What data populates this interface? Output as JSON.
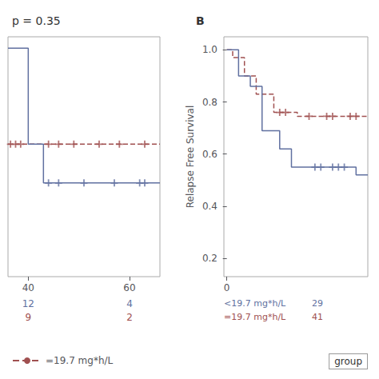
{
  "chart_data": [
    {
      "type": "line",
      "title": "p = 0.35",
      "xlim": [
        36,
        66
      ],
      "ylim": [
        0.0,
        1.05
      ],
      "xticks": [
        40,
        60
      ],
      "yticks": [],
      "tick_labels": "x",
      "grid": false,
      "legend": "lower left",
      "series": [
        {
          "name": "=19.7 mg*h/L",
          "type": "line",
          "line_style": "dashed",
          "color": "#a05050",
          "x": [
            36,
            66
          ],
          "values": [
            0.58,
            0.58
          ]
        },
        {
          "type": "scatter",
          "marker": "+",
          "color": "#a05050",
          "x": [
            36.5,
            37.5,
            38.5,
            44,
            46,
            49,
            54,
            58,
            63
          ],
          "values": [
            0.58,
            0.58,
            0.58,
            0.58,
            0.58,
            0.58,
            0.58,
            0.58,
            0.58
          ]
        },
        {
          "type": "line",
          "line_style": "solid",
          "color": "#6070a0",
          "x": [
            36,
            40,
            40,
            43,
            43,
            66
          ],
          "values": [
            1.0,
            1.0,
            0.58,
            0.58,
            0.41,
            0.41
          ]
        },
        {
          "type": "scatter",
          "marker": "+",
          "color": "#6070a0",
          "x": [
            44,
            46,
            51,
            57,
            62,
            63
          ],
          "values": [
            0.41,
            0.41,
            0.41,
            0.41,
            0.41,
            0.41
          ]
        }
      ],
      "at_risk": {
        "x": [
          40,
          60
        ],
        "rows": [
          {
            "color": "#6070a0",
            "values": [
              12,
              4
            ]
          },
          {
            "color": "#a05050",
            "values": [
              9,
              2
            ]
          }
        ]
      }
    },
    {
      "type": "line",
      "title": "B",
      "ylabel": "Relapse Free Survival",
      "xlim": [
        -0.5,
        24
      ],
      "ylim": [
        0.13,
        1.05
      ],
      "xticks": [
        0
      ],
      "yticks": [
        0.2,
        0.4,
        0.6,
        0.8,
        {
          "value": 1.0,
          "label": "1.0"
        }
      ],
      "grid": false,
      "series": [
        {
          "type": "line",
          "line_style": "dashed",
          "color": "#a05050",
          "x": [
            0,
            1,
            1,
            3,
            3,
            5,
            5,
            8,
            8,
            12,
            12,
            24
          ],
          "values": [
            1.0,
            1.0,
            0.97,
            0.97,
            0.9,
            0.9,
            0.83,
            0.83,
            0.76,
            0.76,
            0.745,
            0.745
          ]
        },
        {
          "type": "scatter",
          "marker": "+",
          "color": "#a05050",
          "x": [
            9,
            10,
            14,
            17,
            18,
            21,
            22
          ],
          "values": [
            0.76,
            0.76,
            0.745,
            0.745,
            0.745,
            0.745,
            0.745
          ]
        },
        {
          "type": "line",
          "line_style": "solid",
          "color": "#6070a0",
          "x": [
            0,
            2,
            2,
            4,
            4,
            6,
            6,
            9,
            9,
            11,
            11,
            14,
            14,
            17,
            17,
            22,
            22,
            24
          ],
          "values": [
            1.0,
            1.0,
            0.9,
            0.9,
            0.86,
            0.86,
            0.69,
            0.69,
            0.62,
            0.62,
            0.55,
            0.55,
            0.55,
            0.55,
            0.55,
            0.55,
            0.52,
            0.52
          ]
        },
        {
          "type": "scatter",
          "marker": "+",
          "color": "#6070a0",
          "x": [
            15,
            16,
            18,
            19,
            20
          ],
          "values": [
            0.55,
            0.55,
            0.55,
            0.55,
            0.55
          ]
        }
      ],
      "at_risk": {
        "rows": [
          {
            "label": "<19.7 mg*h/L",
            "color": "#6070a0",
            "values": [
              29
            ]
          },
          {
            "label": "=19.7 mg*h/L",
            "color": "#a05050",
            "values": [
              41
            ]
          }
        ]
      },
      "annotations": [
        "group"
      ]
    }
  ]
}
